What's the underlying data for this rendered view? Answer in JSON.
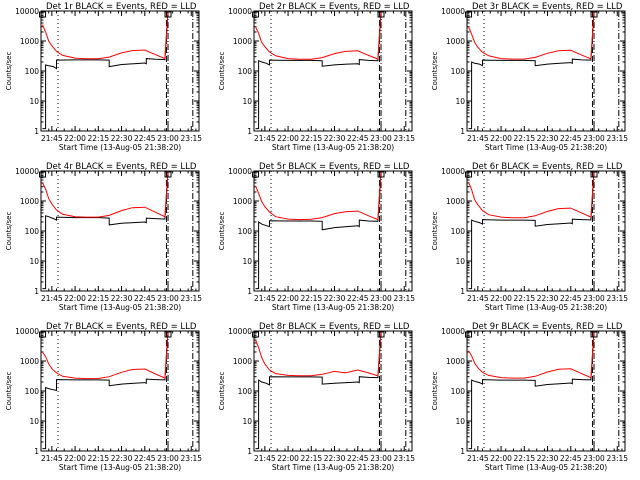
{
  "chart_data": [
    {
      "type": "line",
      "title": "Det 1r BLACK = Events, RED = LLD",
      "xlabel": "Start Time (13-Aug-05 21:38:20)",
      "ylabel": "Counts/sec",
      "x_ticks": [
        "21:45",
        "22:00",
        "22:15",
        "22:30",
        "22:45",
        "23:00",
        "23:15"
      ],
      "y_ticks": [
        "1",
        "10",
        "100",
        "1000",
        "10000"
      ],
      "ylim": [
        1,
        10000
      ],
      "log_y": true,
      "series": [
        {
          "color": "#000000",
          "x": [
            "21:39",
            "21:41",
            "21:41",
            "21:43",
            "21:46",
            "21:48",
            "21:48",
            "22:00",
            "22:15",
            "22:22",
            "22:22",
            "22:30",
            "22:38",
            "22:45",
            "22:46",
            "22:46",
            "22:52",
            "22:58",
            "23:00"
          ],
          "y": [
            1.2,
            1.2,
            160,
            150,
            140,
            120,
            230,
            235,
            235,
            230,
            140,
            165,
            175,
            185,
            175,
            260,
            245,
            240,
            12000
          ]
        },
        {
          "color": "#ff0000",
          "x": [
            "21:39",
            "21:41",
            "21:43",
            "21:45",
            "21:48",
            "21:52",
            "22:00",
            "22:07",
            "22:15",
            "22:22",
            "22:30",
            "22:37",
            "22:45",
            "22:52",
            "22:58",
            "23:00"
          ],
          "y": [
            3500,
            2000,
            1000,
            700,
            450,
            330,
            270,
            255,
            255,
            290,
            400,
            480,
            500,
            350,
            260,
            12000
          ]
        }
      ],
      "markers": {
        "lines_x": [
          "21:49",
          "22:59",
          "23:00",
          "23:16"
        ]
      }
    },
    {
      "type": "line",
      "title": "Det 2r BLACK = Events, RED = LLD",
      "xlabel": "Start Time (13-Aug-05 21:38:20)",
      "ylabel": "Counts/sec",
      "x_ticks": [
        "21:45",
        "22:00",
        "22:15",
        "22:30",
        "22:45",
        "23:00",
        "23:15"
      ],
      "y_ticks": [
        "1",
        "10",
        "100",
        "1000",
        "10000"
      ],
      "ylim": [
        1,
        10000
      ],
      "log_y": true,
      "series": [
        {
          "color": "#000000",
          "x": [
            "21:39",
            "21:41",
            "21:41",
            "21:43",
            "21:46",
            "21:48",
            "21:48",
            "22:00",
            "22:15",
            "22:22",
            "22:22",
            "22:30",
            "22:38",
            "22:45",
            "22:46",
            "22:46",
            "22:52",
            "22:58",
            "23:00"
          ],
          "y": [
            1.2,
            1.2,
            220,
            200,
            180,
            160,
            230,
            225,
            225,
            220,
            145,
            160,
            170,
            175,
            165,
            240,
            225,
            220,
            12000
          ]
        },
        {
          "color": "#ff0000",
          "x": [
            "21:39",
            "21:41",
            "21:43",
            "21:45",
            "21:48",
            "21:52",
            "22:00",
            "22:07",
            "22:15",
            "22:22",
            "22:30",
            "22:37",
            "22:45",
            "22:52",
            "22:58",
            "23:00"
          ],
          "y": [
            3000,
            1800,
            900,
            650,
            430,
            320,
            260,
            245,
            245,
            280,
            380,
            450,
            470,
            330,
            250,
            12000
          ]
        }
      ],
      "markers": {
        "lines_x": [
          "21:49",
          "22:59",
          "23:00",
          "23:16"
        ]
      }
    },
    {
      "type": "line",
      "title": "Det 3r BLACK = Events, RED = LLD",
      "xlabel": "Start Time (13-Aug-05 21:38:20)",
      "ylabel": "Counts/sec",
      "x_ticks": [
        "21:45",
        "22:00",
        "22:15",
        "22:30",
        "22:45",
        "23:00",
        "23:15"
      ],
      "y_ticks": [
        "1",
        "10",
        "100",
        "1000",
        "10000"
      ],
      "ylim": [
        1,
        10000
      ],
      "log_y": true,
      "series": [
        {
          "color": "#000000",
          "x": [
            "21:39",
            "21:41",
            "21:41",
            "21:43",
            "21:46",
            "21:48",
            "21:48",
            "22:00",
            "22:15",
            "22:22",
            "22:22",
            "22:30",
            "22:38",
            "22:45",
            "22:46",
            "22:46",
            "22:52",
            "22:58",
            "23:00"
          ],
          "y": [
            1.2,
            1.2,
            200,
            180,
            170,
            150,
            230,
            225,
            225,
            220,
            150,
            170,
            180,
            190,
            180,
            250,
            235,
            230,
            12000
          ]
        },
        {
          "color": "#ff0000",
          "x": [
            "21:39",
            "21:41",
            "21:43",
            "21:45",
            "21:48",
            "21:52",
            "22:00",
            "22:07",
            "22:15",
            "22:22",
            "22:30",
            "22:37",
            "22:45",
            "22:52",
            "22:58",
            "23:00"
          ],
          "y": [
            3000,
            1700,
            900,
            620,
            420,
            320,
            260,
            250,
            250,
            285,
            390,
            470,
            490,
            340,
            255,
            12000
          ]
        }
      ],
      "markers": {
        "lines_x": [
          "21:49",
          "22:59",
          "23:00",
          "23:16"
        ]
      }
    },
    {
      "type": "line",
      "title": "Det 4r BLACK = Events, RED = LLD",
      "xlabel": "Start Time (13-Aug-05 21:38:20)",
      "ylabel": "Counts/sec",
      "x_ticks": [
        "21:45",
        "22:00",
        "22:15",
        "22:30",
        "22:45",
        "23:00",
        "23:15"
      ],
      "y_ticks": [
        "1",
        "10",
        "100",
        "1000",
        "10000"
      ],
      "ylim": [
        1,
        10000
      ],
      "log_y": true,
      "series": [
        {
          "color": "#000000",
          "x": [
            "21:39",
            "21:41",
            "21:41",
            "21:43",
            "21:46",
            "21:48",
            "21:48",
            "22:00",
            "22:15",
            "22:22",
            "22:22",
            "22:30",
            "22:38",
            "22:45",
            "22:46",
            "22:46",
            "22:52",
            "22:58",
            "23:00"
          ],
          "y": [
            1.2,
            1.2,
            320,
            300,
            260,
            230,
            290,
            280,
            280,
            270,
            160,
            180,
            190,
            200,
            190,
            270,
            260,
            250,
            12000
          ]
        },
        {
          "color": "#ff0000",
          "x": [
            "21:39",
            "21:41",
            "21:43",
            "21:45",
            "21:48",
            "21:52",
            "22:00",
            "22:07",
            "22:15",
            "22:22",
            "22:30",
            "22:37",
            "22:45",
            "22:52",
            "22:58",
            "23:00"
          ],
          "y": [
            4000,
            2500,
            1200,
            800,
            500,
            360,
            300,
            290,
            290,
            330,
            480,
            600,
            620,
            420,
            300,
            12000
          ]
        }
      ],
      "markers": {
        "lines_x": [
          "21:49",
          "22:59",
          "23:00",
          "23:16"
        ]
      }
    },
    {
      "type": "line",
      "title": "Det 5r BLACK = Events, RED = LLD",
      "xlabel": "Start Time (13-Aug-05 21:38:20)",
      "ylabel": "Counts/sec",
      "x_ticks": [
        "21:45",
        "22:00",
        "22:15",
        "22:30",
        "22:45",
        "23:00",
        "23:15"
      ],
      "y_ticks": [
        "1",
        "10",
        "100",
        "1000",
        "10000"
      ],
      "ylim": [
        1,
        10000
      ],
      "log_y": true,
      "series": [
        {
          "color": "#000000",
          "x": [
            "21:39",
            "21:41",
            "21:41",
            "21:43",
            "21:46",
            "21:48",
            "21:48",
            "22:00",
            "22:15",
            "22:22",
            "22:22",
            "22:30",
            "22:38",
            "22:45",
            "22:46",
            "22:46",
            "22:52",
            "22:58",
            "23:00"
          ],
          "y": [
            1.2,
            1.2,
            200,
            170,
            150,
            140,
            220,
            215,
            215,
            210,
            110,
            130,
            140,
            150,
            140,
            230,
            215,
            210,
            12000
          ]
        },
        {
          "color": "#ff0000",
          "x": [
            "21:39",
            "21:41",
            "21:43",
            "21:45",
            "21:48",
            "21:52",
            "22:00",
            "22:07",
            "22:15",
            "22:22",
            "22:30",
            "22:37",
            "22:45",
            "22:52",
            "22:58",
            "23:00"
          ],
          "y": [
            3200,
            1800,
            950,
            650,
            430,
            300,
            250,
            240,
            245,
            280,
            380,
            440,
            460,
            320,
            240,
            12000
          ]
        }
      ],
      "markers": {
        "lines_x": [
          "21:49",
          "22:59",
          "23:00",
          "23:16"
        ]
      }
    },
    {
      "type": "line",
      "title": "Det 6r BLACK = Events, RED = LLD",
      "xlabel": "Start Time (13-Aug-05 21:38:20)",
      "ylabel": "Counts/sec",
      "x_ticks": [
        "21:45",
        "22:00",
        "22:15",
        "22:30",
        "22:45",
        "23:00",
        "23:15"
      ],
      "y_ticks": [
        "1",
        "10",
        "100",
        "1000",
        "10000"
      ],
      "ylim": [
        1,
        10000
      ],
      "log_y": true,
      "series": [
        {
          "color": "#000000",
          "x": [
            "21:39",
            "21:41",
            "21:41",
            "21:43",
            "21:46",
            "21:48",
            "21:48",
            "22:00",
            "22:15",
            "22:22",
            "22:22",
            "22:30",
            "22:38",
            "22:45",
            "22:46",
            "22:46",
            "22:52",
            "22:58",
            "23:00"
          ],
          "y": [
            1.2,
            1.2,
            230,
            210,
            190,
            170,
            240,
            230,
            230,
            225,
            145,
            165,
            175,
            185,
            175,
            250,
            240,
            235,
            12000
          ]
        },
        {
          "color": "#ff0000",
          "x": [
            "21:39",
            "21:41",
            "21:43",
            "21:45",
            "21:48",
            "21:52",
            "22:00",
            "22:07",
            "22:15",
            "22:22",
            "22:30",
            "22:37",
            "22:45",
            "22:52",
            "22:58",
            "23:00"
          ],
          "y": [
            4200,
            2400,
            1100,
            750,
            480,
            350,
            290,
            275,
            275,
            320,
            450,
            560,
            580,
            400,
            290,
            12000
          ]
        }
      ],
      "markers": {
        "lines_x": [
          "21:49",
          "22:59",
          "23:00",
          "23:16"
        ]
      }
    },
    {
      "type": "line",
      "title": "Det 7r BLACK = Events, RED = LLD",
      "xlabel": "Start Time (13-Aug-05 21:38:20)",
      "ylabel": "Counts/sec",
      "x_ticks": [
        "21:45",
        "22:00",
        "22:15",
        "22:30",
        "22:45",
        "23:00",
        "23:15"
      ],
      "y_ticks": [
        "1",
        "10",
        "100",
        "1000",
        "10000"
      ],
      "ylim": [
        1,
        10000
      ],
      "log_y": true,
      "series": [
        {
          "color": "#000000",
          "x": [
            "21:39",
            "21:41",
            "21:41",
            "21:43",
            "21:46",
            "21:48",
            "21:48",
            "22:00",
            "22:15",
            "22:22",
            "22:22",
            "22:30",
            "22:38",
            "22:45",
            "22:46",
            "22:46",
            "22:52",
            "22:58",
            "23:00"
          ],
          "y": [
            1.2,
            1.2,
            130,
            120,
            110,
            105,
            240,
            235,
            235,
            230,
            150,
            170,
            180,
            190,
            180,
            250,
            240,
            235,
            12000
          ]
        },
        {
          "color": "#ff0000",
          "x": [
            "21:39",
            "21:41",
            "21:43",
            "21:45",
            "21:48",
            "21:52",
            "22:00",
            "22:07",
            "22:15",
            "22:22",
            "22:30",
            "22:37",
            "22:45",
            "22:52",
            "22:58",
            "23:00"
          ],
          "y": [
            2000,
            1400,
            800,
            560,
            400,
            310,
            270,
            260,
            262,
            300,
            420,
            520,
            540,
            370,
            270,
            12000
          ]
        }
      ],
      "markers": {
        "lines_x": [
          "21:49",
          "22:59",
          "23:00",
          "23:16"
        ]
      }
    },
    {
      "type": "line",
      "title": "Det 8r BLACK = Events, RED = LLD",
      "xlabel": "Start Time (13-Aug-05 21:38:20)",
      "ylabel": "Counts/sec",
      "x_ticks": [
        "21:45",
        "22:00",
        "22:15",
        "22:30",
        "22:45",
        "23:00",
        "23:15"
      ],
      "y_ticks": [
        "1",
        "10",
        "100",
        "1000",
        "10000"
      ],
      "ylim": [
        1,
        10000
      ],
      "log_y": true,
      "series": [
        {
          "color": "#000000",
          "x": [
            "21:39",
            "21:41",
            "21:41",
            "21:43",
            "21:46",
            "21:48",
            "21:48",
            "22:00",
            "22:15",
            "22:22",
            "22:22",
            "22:30",
            "22:38",
            "22:45",
            "22:46",
            "22:46",
            "22:52",
            "22:58",
            "23:00"
          ],
          "y": [
            1.2,
            1.2,
            230,
            200,
            180,
            160,
            300,
            295,
            295,
            290,
            170,
            180,
            190,
            200,
            190,
            300,
            285,
            280,
            12000
          ]
        },
        {
          "color": "#ff0000",
          "x": [
            "21:39",
            "21:41",
            "21:43",
            "21:45",
            "21:48",
            "21:52",
            "22:00",
            "22:07",
            "22:15",
            "22:22",
            "22:30",
            "22:37",
            "22:45",
            "22:52",
            "22:58",
            "23:00"
          ],
          "y": [
            5000,
            2800,
            1300,
            800,
            500,
            380,
            330,
            320,
            320,
            360,
            450,
            400,
            500,
            400,
            320,
            12000
          ]
        }
      ],
      "markers": {
        "lines_x": [
          "21:49",
          "22:59",
          "23:00",
          "23:16"
        ]
      }
    },
    {
      "type": "line",
      "title": "Det 9r BLACK = Events, RED = LLD",
      "xlabel": "Start Time (13-Aug-05 21:38:20)",
      "ylabel": "Counts/sec",
      "x_ticks": [
        "21:45",
        "22:00",
        "22:15",
        "22:30",
        "22:45",
        "23:00",
        "23:15"
      ],
      "y_ticks": [
        "1",
        "10",
        "100",
        "1000",
        "10000"
      ],
      "ylim": [
        1,
        10000
      ],
      "log_y": true,
      "series": [
        {
          "color": "#000000",
          "x": [
            "21:39",
            "21:41",
            "21:41",
            "21:43",
            "21:46",
            "21:48",
            "21:48",
            "22:00",
            "22:15",
            "22:22",
            "22:22",
            "22:30",
            "22:38",
            "22:45",
            "22:46",
            "22:46",
            "22:52",
            "22:58",
            "23:00"
          ],
          "y": [
            1.2,
            1.2,
            230,
            210,
            190,
            170,
            240,
            230,
            230,
            225,
            145,
            165,
            175,
            185,
            175,
            250,
            240,
            235,
            12000
          ]
        },
        {
          "color": "#ff0000",
          "x": [
            "21:39",
            "21:41",
            "21:43",
            "21:45",
            "21:48",
            "21:52",
            "22:00",
            "22:07",
            "22:15",
            "22:22",
            "22:30",
            "22:37",
            "22:45",
            "22:52",
            "22:58",
            "23:00"
          ],
          "y": [
            2200,
            1500,
            850,
            600,
            420,
            330,
            280,
            270,
            270,
            310,
            430,
            530,
            550,
            380,
            280,
            12000
          ]
        }
      ],
      "markers": {
        "lines_x": [
          "21:49",
          "22:59",
          "23:00",
          "23:16"
        ]
      }
    }
  ]
}
